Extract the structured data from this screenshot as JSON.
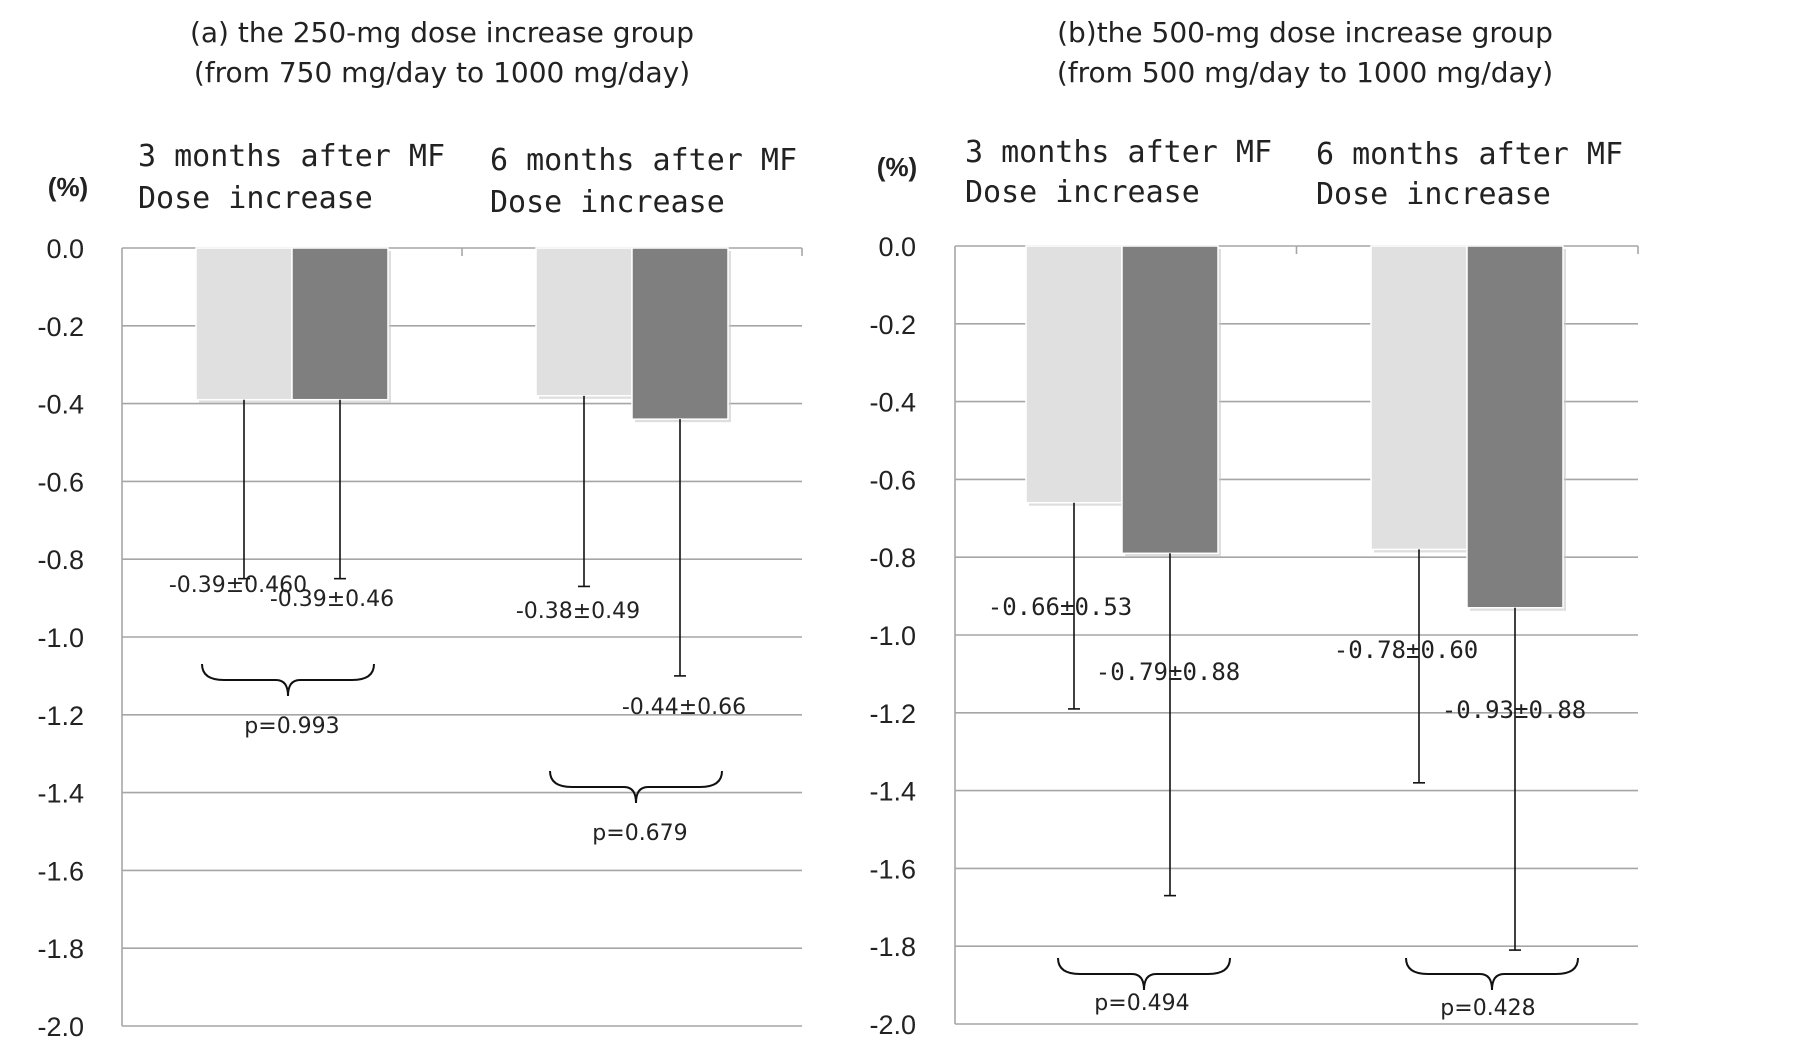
{
  "chart_data": [
    {
      "type": "bar",
      "title_line1": "(a) the 250-mg dose increase group",
      "title_line2": "(from 750 mg/day to 1000 mg/day)",
      "ylabel": "(%)",
      "ylim": [
        -2.0,
        0.0
      ],
      "yticks": [
        "0.0",
        "-0.2",
        "-0.4",
        "-0.6",
        "-0.8",
        "-1.0",
        "-1.2",
        "-1.4",
        "-1.6",
        "-1.8",
        "-2.0"
      ],
      "grid": true,
      "groups": [
        {
          "label_line1": "3 months after MF",
          "label_line2": "Dose increase",
          "bars": [
            {
              "value": -0.39,
              "sd": 0.46,
              "label": "-0.39±0.460",
              "color": "#e0e0e0"
            },
            {
              "value": -0.39,
              "sd": 0.46,
              "label": "-0.39±0.46",
              "color": "#7f7f7f"
            }
          ],
          "p_label": "p=0.993"
        },
        {
          "label_line1": "6 months after MF",
          "label_line2": "Dose increase",
          "bars": [
            {
              "value": -0.38,
              "sd": 0.49,
              "label": "-0.38±0.49",
              "color": "#e0e0e0"
            },
            {
              "value": -0.44,
              "sd": 0.66,
              "label": "-0.44±0.66",
              "color": "#7f7f7f"
            }
          ],
          "p_label": "p=0.679"
        }
      ]
    },
    {
      "type": "bar",
      "title_line1": "(b)the 500-mg dose increase group",
      "title_line2": "(from 500 mg/day to 1000 mg/day)",
      "ylabel": "(%)",
      "ylim": [
        -2.0,
        0.0
      ],
      "yticks": [
        "0.0",
        "-0.2",
        "-0.4",
        "-0.6",
        "-0.8",
        "-1.0",
        "-1.2",
        "-1.4",
        "-1.6",
        "-1.8",
        "-2.0"
      ],
      "grid": true,
      "groups": [
        {
          "label_line1": "3 months after MF",
          "label_line2": "Dose increase",
          "bars": [
            {
              "value": -0.66,
              "sd": 0.53,
              "label": "-0.66±0.53",
              "color": "#e0e0e0"
            },
            {
              "value": -0.79,
              "sd": 0.88,
              "label": "-0.79±0.88",
              "color": "#7f7f7f"
            }
          ],
          "p_label": "p=0.494"
        },
        {
          "label_line1": "6 months after MF",
          "label_line2": "Dose increase",
          "bars": [
            {
              "value": -0.78,
              "sd": 0.6,
              "label": "-0.78±0.60",
              "color": "#e0e0e0"
            },
            {
              "value": -0.93,
              "sd": 0.88,
              "label": "-0.93±0.88",
              "color": "#7f7f7f"
            }
          ],
          "p_label": "p=0.428"
        }
      ]
    }
  ]
}
